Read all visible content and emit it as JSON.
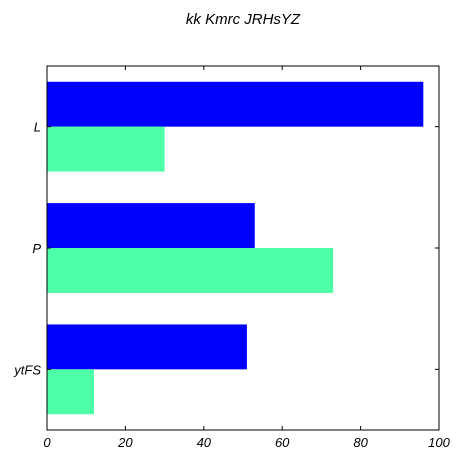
{
  "chart_data": {
    "type": "bar",
    "orientation": "horizontal",
    "title": "kk Kmrc JRHsYZ",
    "xlabel": "",
    "ylabel": "",
    "categories": [
      "L",
      "P",
      "ytFS"
    ],
    "series": [
      {
        "values": [
          96,
          53,
          51
        ],
        "color": "#0000ff"
      },
      {
        "values": [
          30,
          73,
          12
        ],
        "color": "#4dffa6"
      }
    ],
    "xlim": [
      0,
      100
    ],
    "xticks": [
      0,
      20,
      40,
      60,
      80,
      100
    ],
    "grid": false,
    "legend": "none"
  }
}
